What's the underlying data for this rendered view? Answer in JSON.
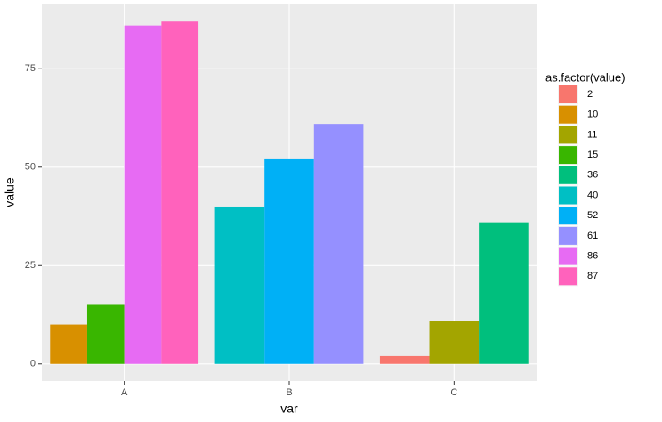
{
  "chart_data": {
    "type": "bar",
    "x_label": "var",
    "y_label": "value",
    "legend_title": "as.factor(value)",
    "categories": [
      "A",
      "B",
      "C"
    ],
    "series": [
      {
        "name": "2",
        "color": "#F8766D",
        "values": [
          null,
          null,
          2
        ]
      },
      {
        "name": "10",
        "color": "#D89000",
        "values": [
          10,
          null,
          null
        ]
      },
      {
        "name": "11",
        "color": "#A3A500",
        "values": [
          null,
          null,
          11
        ]
      },
      {
        "name": "15",
        "color": "#39B600",
        "values": [
          15,
          null,
          null
        ]
      },
      {
        "name": "36",
        "color": "#00BF7D",
        "values": [
          null,
          null,
          36
        ]
      },
      {
        "name": "40",
        "color": "#00BFC4",
        "values": [
          null,
          40,
          null
        ]
      },
      {
        "name": "52",
        "color": "#00B0F6",
        "values": [
          null,
          52,
          null
        ]
      },
      {
        "name": "61",
        "color": "#9590FF",
        "values": [
          null,
          61,
          null
        ]
      },
      {
        "name": "86",
        "color": "#E76BF3",
        "values": [
          86,
          null,
          null
        ]
      },
      {
        "name": "87",
        "color": "#FF62BC",
        "values": [
          87,
          null,
          null
        ]
      }
    ],
    "ylim": [
      -4.35,
      91.35
    ],
    "yticks": [
      0,
      25,
      50,
      75
    ],
    "grid": true,
    "legend": "right"
  }
}
